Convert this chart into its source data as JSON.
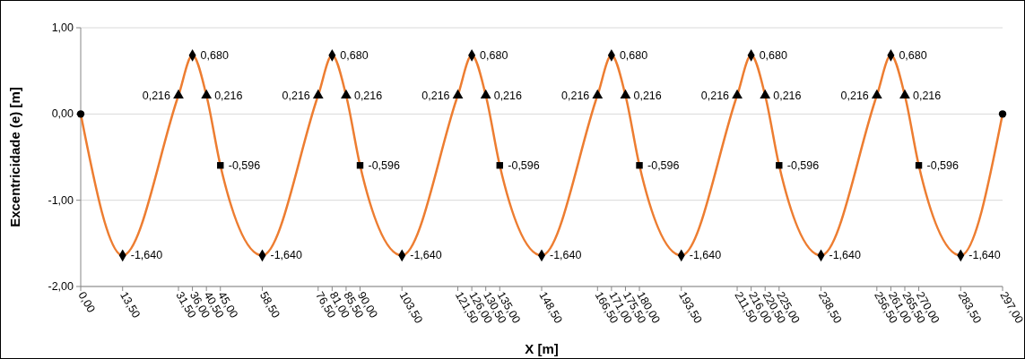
{
  "chart_data": {
    "type": "line",
    "xlabel": "X [m]",
    "ylabel": "Excentricidade (e) [m]",
    "xlim": [
      0,
      297
    ],
    "ylim": [
      -2,
      1
    ],
    "yticks": [
      {
        "value": -2,
        "label": "-2,00"
      },
      {
        "value": -1,
        "label": "-1,00"
      },
      {
        "value": 0,
        "label": "0,00"
      },
      {
        "value": 1,
        "label": "1,00"
      }
    ],
    "xticks": [
      {
        "value": 0,
        "label": "0,00"
      },
      {
        "value": 13.5,
        "label": "13,50"
      },
      {
        "value": 31.5,
        "label": "31,50"
      },
      {
        "value": 36,
        "label": "36,00"
      },
      {
        "value": 40.5,
        "label": "40,50"
      },
      {
        "value": 45,
        "label": "45,00"
      },
      {
        "value": 58.5,
        "label": "58,50"
      },
      {
        "value": 76.5,
        "label": "76,50"
      },
      {
        "value": 81,
        "label": "81,00"
      },
      {
        "value": 85.5,
        "label": "85,50"
      },
      {
        "value": 90,
        "label": "90,00"
      },
      {
        "value": 103.5,
        "label": "103,50"
      },
      {
        "value": 121.5,
        "label": "121,50"
      },
      {
        "value": 126,
        "label": "126,00"
      },
      {
        "value": 130.5,
        "label": "130,50"
      },
      {
        "value": 135,
        "label": "135,00"
      },
      {
        "value": 148.5,
        "label": "148,50"
      },
      {
        "value": 166.5,
        "label": "166,50"
      },
      {
        "value": 171,
        "label": "171,00"
      },
      {
        "value": 175.5,
        "label": "175,50"
      },
      {
        "value": 180,
        "label": "180,00"
      },
      {
        "value": 193.5,
        "label": "193,50"
      },
      {
        "value": 211.5,
        "label": "211,50"
      },
      {
        "value": 216,
        "label": "216,00"
      },
      {
        "value": 220.5,
        "label": "220,50"
      },
      {
        "value": 225,
        "label": "225,00"
      },
      {
        "value": 238.5,
        "label": "238,50"
      },
      {
        "value": 256.5,
        "label": "256,50"
      },
      {
        "value": 261,
        "label": "261,00"
      },
      {
        "value": 265.5,
        "label": "265,50"
      },
      {
        "value": 270,
        "label": "270,00"
      },
      {
        "value": 283.5,
        "label": "283,50"
      },
      {
        "value": 297,
        "label": "297,00"
      }
    ],
    "grid": "y",
    "line_style": "solid",
    "series": [
      {
        "color": "#ed7d31",
        "marker": "none",
        "x": [
          0,
          13.5,
          31.5,
          36,
          40.5,
          45,
          58.5,
          76.5,
          81,
          85.5,
          90,
          103.5,
          121.5,
          126,
          130.5,
          135,
          148.5,
          166.5,
          171,
          175.5,
          180,
          193.5,
          211.5,
          216,
          220.5,
          225,
          238.5,
          256.5,
          261,
          265.5,
          270,
          283.5,
          297
        ],
        "values": [
          0,
          -1.64,
          0.216,
          0.68,
          0.216,
          -0.596,
          -1.64,
          0.216,
          0.68,
          0.216,
          -0.596,
          -1.64,
          0.216,
          0.68,
          0.216,
          -0.596,
          -1.64,
          0.216,
          0.68,
          0.216,
          -0.596,
          -1.64,
          0.216,
          0.68,
          0.216,
          -0.596,
          -1.64,
          0.216,
          0.68,
          0.216,
          -0.596,
          -1.64,
          0
        ]
      },
      {
        "type": "scatter",
        "color": "#000000",
        "marker": "circle",
        "x": [
          0,
          297
        ],
        "values": [
          0,
          0
        ]
      },
      {
        "type": "scatter",
        "color": "#000000",
        "marker": "diamond",
        "x": [
          13.5,
          36,
          58.5,
          81,
          103.5,
          126,
          148.5,
          171,
          193.5,
          216,
          238.5,
          261,
          283.5
        ],
        "values": [
          -1.64,
          0.68,
          -1.64,
          0.68,
          -1.64,
          0.68,
          -1.64,
          0.68,
          -1.64,
          0.68,
          -1.64,
          0.68,
          -1.64
        ],
        "value_labels": [
          "-1,640",
          "0,680",
          "-1,640",
          "0,680",
          "-1,640",
          "0,680",
          "-1,640",
          "0,680",
          "-1,640",
          "0,680",
          "-1,640",
          "0,680",
          "-1,640"
        ]
      },
      {
        "type": "scatter",
        "color": "#000000",
        "marker": "triangle",
        "x": [
          31.5,
          40.5,
          76.5,
          85.5,
          121.5,
          130.5,
          166.5,
          175.5,
          211.5,
          220.5,
          256.5,
          265.5
        ],
        "values": [
          0.216,
          0.216,
          0.216,
          0.216,
          0.216,
          0.216,
          0.216,
          0.216,
          0.216,
          0.216,
          0.216,
          0.216
        ],
        "value_labels": [
          "0,216",
          "0,216",
          "0,216",
          "0,216",
          "0,216",
          "0,216",
          "0,216",
          "0,216",
          "0,216",
          "0,216",
          "0,216",
          "0,216"
        ]
      },
      {
        "type": "scatter",
        "color": "#000000",
        "marker": "square",
        "x": [
          45,
          90,
          135,
          180,
          225,
          270
        ],
        "values": [
          -0.596,
          -0.596,
          -0.596,
          -0.596,
          -0.596,
          -0.596
        ],
        "value_labels": [
          "-0,596",
          "-0,596",
          "-0,596",
          "-0,596",
          "-0,596",
          "-0,596"
        ]
      }
    ]
  }
}
